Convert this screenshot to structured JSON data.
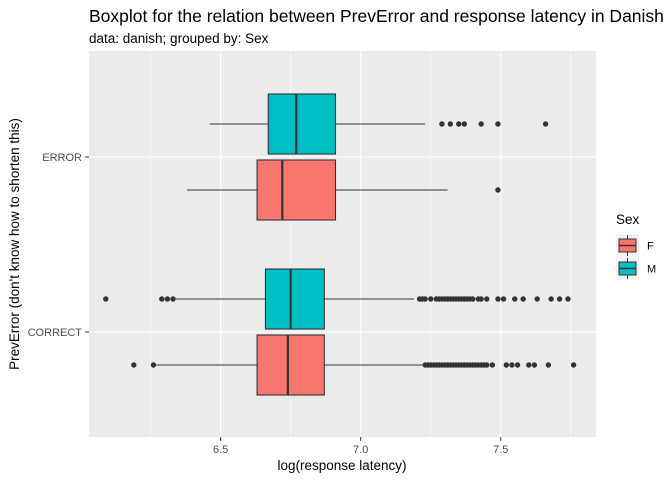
{
  "chart_data": {
    "type": "boxplot",
    "orientation": "horizontal",
    "title": "Boxplot for the relation between PrevError and response latency in Danish",
    "subtitle": "data: danish; grouped by: Sex",
    "xlabel": "log(response latency)",
    "ylabel": "PrevError (don't know how to shorten this)",
    "xlim": [
      6.03,
      7.84
    ],
    "x_ticks": [
      "6.5",
      "7.0",
      "7.5"
    ],
    "categories": [
      "ERROR",
      "CORRECT"
    ],
    "legend": {
      "title": "Sex",
      "position": "right",
      "entries": [
        "F",
        "M"
      ]
    },
    "colors": {
      "F": "#F8766D",
      "M": "#00BFC4",
      "panel": "#EBEBEB",
      "grid": "#FFFFFF",
      "text": "#000000",
      "tick_text": "#4D4D4D"
    },
    "grid": true,
    "boxes": [
      {
        "category": "ERROR",
        "group": "M",
        "whisker_low": 6.46,
        "q1": 6.67,
        "median": 6.77,
        "q3": 6.91,
        "whisker_high": 7.23,
        "outliers": [
          7.29,
          7.32,
          7.35,
          7.37,
          7.43,
          7.49,
          7.66
        ]
      },
      {
        "category": "ERROR",
        "group": "F",
        "whisker_low": 6.38,
        "q1": 6.63,
        "median": 6.72,
        "q3": 6.91,
        "whisker_high": 7.31,
        "outliers": [
          7.49
        ]
      },
      {
        "category": "CORRECT",
        "group": "M",
        "whisker_low": 6.34,
        "q1": 6.66,
        "median": 6.75,
        "q3": 6.87,
        "whisker_high": 7.19,
        "outliers": [
          6.09,
          6.29,
          6.31,
          6.33,
          7.21,
          7.22,
          7.23,
          7.25,
          7.27,
          7.28,
          7.29,
          7.3,
          7.31,
          7.32,
          7.33,
          7.34,
          7.35,
          7.36,
          7.37,
          7.38,
          7.39,
          7.4,
          7.42,
          7.43,
          7.45,
          7.49,
          7.51,
          7.55,
          7.58,
          7.63,
          7.68,
          7.71,
          7.74
        ]
      },
      {
        "category": "CORRECT",
        "group": "F",
        "whisker_low": 6.27,
        "q1": 6.63,
        "median": 6.74,
        "q3": 6.87,
        "whisker_high": 7.22,
        "outliers": [
          6.19,
          6.26,
          7.23,
          7.24,
          7.25,
          7.26,
          7.27,
          7.28,
          7.29,
          7.3,
          7.31,
          7.32,
          7.33,
          7.34,
          7.35,
          7.36,
          7.37,
          7.38,
          7.39,
          7.4,
          7.41,
          7.42,
          7.43,
          7.44,
          7.45,
          7.47,
          7.52,
          7.54,
          7.56,
          7.6,
          7.62,
          7.67,
          7.76
        ]
      }
    ]
  }
}
